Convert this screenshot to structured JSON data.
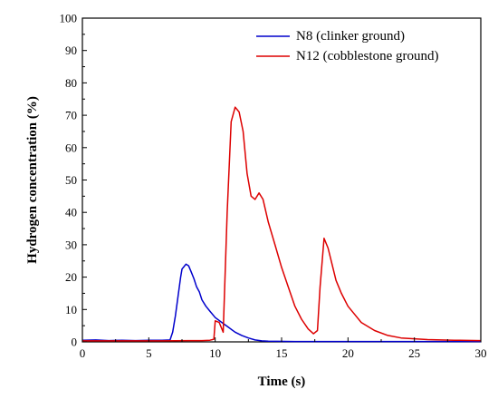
{
  "chart_data": {
    "type": "line",
    "xlabel": "Time (s)",
    "ylabel": "Hydrogen concentration (%)",
    "xlim": [
      0,
      30
    ],
    "ylim": [
      0,
      100
    ],
    "xticks": [
      0,
      5,
      10,
      15,
      20,
      25,
      30
    ],
    "yticks": [
      0,
      10,
      20,
      30,
      40,
      50,
      60,
      70,
      80,
      90,
      100
    ],
    "grid": false,
    "legend_position": "top-right",
    "series": [
      {
        "name": "N8 (clinker ground)",
        "color": "#0000cc",
        "x": [
          0,
          1,
          2,
          3,
          4,
          5,
          6,
          6.6,
          6.8,
          7.0,
          7.2,
          7.4,
          7.5,
          7.6,
          7.8,
          8.0,
          8.2,
          8.4,
          8.6,
          8.8,
          9.0,
          9.3,
          9.6,
          10.0,
          10.5,
          11.0,
          11.5,
          12.0,
          12.5,
          13.0,
          13.5,
          14,
          16,
          18,
          20,
          22,
          24,
          26,
          28,
          30
        ],
        "y": [
          0.5,
          0.6,
          0.4,
          0.5,
          0.4,
          0.5,
          0.5,
          0.6,
          3.0,
          8.0,
          14.0,
          20.0,
          22.5,
          23.0,
          24.0,
          23.5,
          21.5,
          19.5,
          17.0,
          15.5,
          13.0,
          11.0,
          9.5,
          7.5,
          6.0,
          4.5,
          3.0,
          2.0,
          1.2,
          0.6,
          0.3,
          0.2,
          0.1,
          0.1,
          0.1,
          0.1,
          0.1,
          0.1,
          0.1,
          0.1
        ]
      },
      {
        "name": "N12 (cobblestone ground)",
        "color": "#dd0000",
        "x": [
          0,
          2,
          4,
          6,
          8,
          9,
          9.6,
          9.9,
          10.0,
          10.3,
          10.6,
          10.9,
          11.2,
          11.5,
          11.8,
          12.1,
          12.4,
          12.7,
          13.0,
          13.3,
          13.6,
          14.0,
          14.5,
          15.0,
          15.5,
          16.0,
          16.5,
          17.0,
          17.4,
          17.7,
          17.9,
          18.2,
          18.5,
          18.8,
          19.1,
          19.5,
          20.0,
          20.5,
          21.0,
          22,
          23,
          24,
          26,
          28,
          30
        ],
        "y": [
          0.3,
          0.3,
          0.3,
          0.3,
          0.4,
          0.4,
          0.5,
          0.8,
          6.5,
          6.0,
          3.0,
          40.0,
          68.0,
          72.5,
          71.0,
          65.0,
          52.0,
          45.0,
          44.0,
          46.0,
          44.0,
          37.0,
          30.0,
          23.0,
          17.0,
          11.0,
          7.0,
          4.0,
          2.5,
          3.5,
          17.0,
          32.0,
          29.0,
          24.0,
          19.0,
          15.0,
          11.0,
          8.5,
          6.0,
          3.5,
          2.0,
          1.2,
          0.7,
          0.5,
          0.4
        ]
      }
    ]
  }
}
